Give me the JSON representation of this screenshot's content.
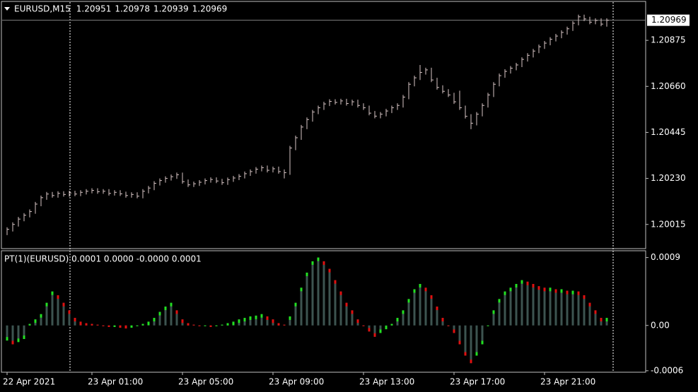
{
  "chart_data": [
    {
      "type": "ohlc",
      "title": "EURUSD,M15",
      "ohlc_header": [
        1.20951,
        1.20978,
        1.20939,
        1.20969
      ],
      "last_price": 1.20969,
      "color": "#d9c6c6",
      "last_line_color": "#808080",
      "categories": [
        "22 Apr 2021",
        null,
        null,
        null,
        null,
        null,
        null,
        null,
        null,
        null,
        null,
        null,
        null,
        null,
        null,
        "23 Apr 01:00",
        null,
        null,
        null,
        null,
        null,
        null,
        null,
        null,
        null,
        null,
        null,
        null,
        null,
        null,
        null,
        "23 Apr 05:00",
        null,
        null,
        null,
        null,
        null,
        null,
        null,
        null,
        null,
        null,
        null,
        null,
        null,
        null,
        null,
        "23 Apr 09:00",
        null,
        null,
        null,
        null,
        null,
        null,
        null,
        null,
        null,
        null,
        null,
        null,
        null,
        null,
        null,
        "23 Apr 13:00",
        null,
        null,
        null,
        null,
        null,
        null,
        null,
        null,
        null,
        null,
        null,
        null,
        null,
        null,
        null,
        "23 Apr 17:00",
        null,
        null,
        null,
        null,
        null,
        null,
        null,
        null,
        null,
        null,
        null,
        null,
        null,
        null,
        null,
        "23 Apr 21:00",
        null,
        null,
        null,
        null,
        null,
        null,
        null,
        null,
        null,
        null,
        null
      ],
      "high": [
        1.20002,
        1.20025,
        1.2005,
        1.20068,
        1.20085,
        1.2012,
        1.2015,
        1.20167,
        1.20167,
        1.2017,
        1.2017,
        1.20172,
        1.20172,
        1.20175,
        1.2018,
        1.20184,
        1.20184,
        1.2018,
        1.2018,
        1.20175,
        1.20175,
        1.20168,
        1.20165,
        1.20165,
        1.2018,
        1.20195,
        1.20217,
        1.2023,
        1.2024,
        1.20248,
        1.20257,
        1.20257,
        1.20225,
        1.20215,
        1.20222,
        1.2023,
        1.20235,
        1.20235,
        1.20228,
        1.20234,
        1.20242,
        1.2025,
        1.20262,
        1.20272,
        1.20283,
        1.2029,
        1.2029,
        1.20285,
        1.20285,
        1.20272,
        1.20382,
        1.2043,
        1.2048,
        1.20515,
        1.2055,
        1.2057,
        1.20588,
        1.206,
        1.206,
        1.20602,
        1.20602,
        1.20598,
        1.20598,
        1.20581,
        1.2057,
        1.20545,
        1.2054,
        1.20555,
        1.2057,
        1.20581,
        1.2062,
        1.2068,
        1.2071,
        1.2076,
        1.20747,
        1.20747,
        1.207,
        1.20665,
        1.20647,
        1.2063,
        1.2064,
        1.2057,
        1.2053,
        1.2054,
        1.20581,
        1.2063,
        1.2068,
        1.2072,
        1.2074,
        1.20755,
        1.2077,
        1.20796,
        1.20815,
        1.20835,
        1.20855,
        1.20872,
        1.2089,
        1.20905,
        1.20922,
        1.20939,
        1.20965,
        1.20995,
        1.20995,
        1.20985,
        1.20978,
        1.20978,
        1.20978
      ],
      "low": [
        1.19965,
        1.19982,
        1.20005,
        1.2003,
        1.20048,
        1.20065,
        1.201,
        1.2013,
        1.2014,
        1.2014,
        1.20145,
        1.20145,
        1.20147,
        1.20147,
        1.20155,
        1.2016,
        1.20158,
        1.20158,
        1.2015,
        1.2015,
        1.20148,
        1.2014,
        1.2014,
        1.20137,
        1.20137,
        1.2016,
        1.20175,
        1.20197,
        1.2021,
        1.2022,
        1.20228,
        1.20205,
        1.2019,
        1.2019,
        1.20195,
        1.20202,
        1.2021,
        1.20208,
        1.202,
        1.202,
        1.20214,
        1.20222,
        1.2023,
        1.20242,
        1.20252,
        1.20263,
        1.20258,
        1.20258,
        1.20252,
        1.2023,
        1.20247,
        1.20362,
        1.2041,
        1.2046,
        1.20495,
        1.2053,
        1.2055,
        1.20568,
        1.20575,
        1.20575,
        1.2057,
        1.2057,
        1.20561,
        1.2055,
        1.20525,
        1.20511,
        1.20511,
        1.2052,
        1.20535,
        1.2055,
        1.20561,
        1.206,
        1.2066,
        1.2069,
        1.20715,
        1.2068,
        1.20645,
        1.20627,
        1.2061,
        1.20578,
        1.2055,
        1.2051,
        1.2046,
        1.20478,
        1.2052,
        1.20561,
        1.2061,
        1.2066,
        1.207,
        1.2072,
        1.20735,
        1.2075,
        1.20776,
        1.20795,
        1.20815,
        1.20835,
        1.20852,
        1.2087,
        1.20885,
        1.20902,
        1.20919,
        1.20945,
        1.20965,
        1.2095,
        1.2095,
        1.20941,
        1.20939
      ],
      "close": [
        1.19992,
        1.20015,
        1.2004,
        1.20058,
        1.20075,
        1.2011,
        1.2014,
        1.20157,
        1.2015,
        1.2016,
        1.20155,
        1.20162,
        1.20157,
        1.20165,
        1.2017,
        1.20174,
        1.20168,
        1.2017,
        1.2016,
        1.20165,
        1.20158,
        1.2015,
        1.20155,
        1.20147,
        1.2017,
        1.20185,
        1.20207,
        1.2022,
        1.2023,
        1.20238,
        1.20247,
        1.20215,
        1.202,
        1.20205,
        1.20212,
        1.2022,
        1.20225,
        1.20218,
        1.2021,
        1.20224,
        1.20232,
        1.2024,
        1.20252,
        1.20262,
        1.20273,
        1.2028,
        1.20268,
        1.20275,
        1.20262,
        1.20257,
        1.20372,
        1.2042,
        1.2047,
        1.20505,
        1.2054,
        1.2056,
        1.20578,
        1.2059,
        1.20585,
        1.20592,
        1.2058,
        1.20588,
        1.20571,
        1.2056,
        1.20535,
        1.20521,
        1.2053,
        1.20545,
        1.2056,
        1.20571,
        1.2061,
        1.2067,
        1.207,
        1.20725,
        1.20737,
        1.2069,
        1.20655,
        1.20637,
        1.2062,
        1.20588,
        1.2056,
        1.2052,
        1.20488,
        1.2053,
        1.20571,
        1.2062,
        1.2067,
        1.2071,
        1.2073,
        1.20745,
        1.2076,
        1.20786,
        1.20805,
        1.20825,
        1.20845,
        1.20862,
        1.2088,
        1.20895,
        1.20912,
        1.20929,
        1.20955,
        1.20985,
        1.20975,
        1.2096,
        1.20968,
        1.20951,
        1.20969
      ],
      "ylim": [
        1.19902,
        1.21047
      ],
      "yticks": [
        1.20015,
        {
          "value": 1.2023,
          "label": "1.20230"
        },
        1.20445,
        {
          "value": 1.2066,
          "label": "1.20660"
        },
        1.20875
      ]
    },
    {
      "type": "bar",
      "title": "PT(1)(EURUSD) 0.0001 0.0000 -0.0000 0.0001",
      "color": "#3d5450",
      "up_color": "#22e022",
      "down_color": "#e01010",
      "values": [
        -0.0002,
        -0.00025,
        -0.00022,
        -0.00018,
        2e-05,
        8e-05,
        0.00015,
        0.0003,
        0.00045,
        0.0004,
        0.0003,
        0.0002,
        0.0001,
        5e-05,
        3e-05,
        2e-05,
        1e-05,
        -1e-05,
        -2e-05,
        -2e-05,
        -3e-05,
        -4e-05,
        -3e-05,
        -1e-05,
        2e-05,
        5e-05,
        0.0001,
        0.00018,
        0.00025,
        0.0003,
        0.0002,
        8e-05,
        3e-05,
        1e-05,
        -1e-05,
        0,
        -2e-05,
        -1e-05,
        1e-05,
        3e-05,
        5e-05,
        8e-05,
        0.0001,
        0.00012,
        0.00013,
        0.00015,
        0.00012,
        8e-05,
        3e-05,
        1e-05,
        0.00012,
        0.0003,
        0.0005,
        0.0007,
        0.00085,
        0.0009,
        0.00085,
        0.00075,
        0.0006,
        0.00045,
        0.0003,
        0.0002,
        8e-05,
        0,
        -8e-05,
        -0.00015,
        -0.0001,
        -5e-05,
        2e-05,
        0.0001,
        0.0002,
        0.00035,
        0.00048,
        0.00055,
        0.0005,
        0.0004,
        0.00025,
        0.0001,
        0,
        -0.0001,
        -0.00025,
        -0.0004,
        -0.0005,
        -0.0004,
        -0.00025,
        0,
        0.0002,
        0.00035,
        0.00045,
        0.0005,
        0.00055,
        0.0006,
        0.00058,
        0.00055,
        0.00052,
        0.0005,
        0.0005,
        0.00048,
        0.00048,
        0.00046,
        0.00046,
        0.00045,
        0.0004,
        0.0003,
        0.0002,
        0.0001,
        0.0001
      ],
      "ylim": [
        -0.00062,
        0.00099
      ],
      "yticks": [
        0.0009,
        {
          "value": 0,
          "label": "0.00"
        },
        -0.0006
      ]
    }
  ]
}
